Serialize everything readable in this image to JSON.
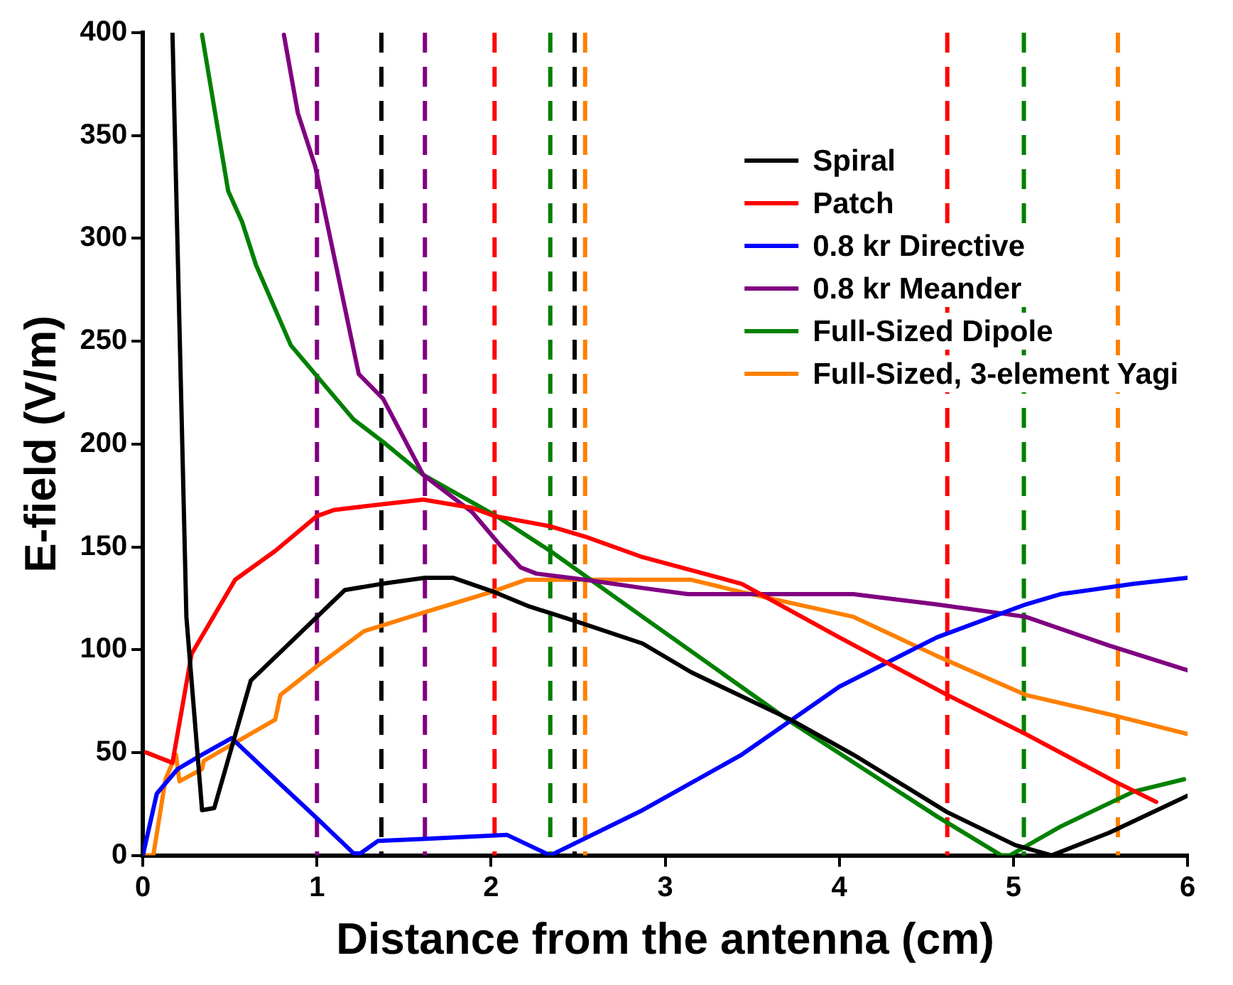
{
  "chart_data": {
    "type": "line",
    "xlabel": "Distance from the antenna (cm)",
    "ylabel": "E-field (V/m)",
    "xlim": [
      0,
      6
    ],
    "xticks": [
      0,
      1,
      2,
      3,
      4,
      5,
      6
    ],
    "ylim": [
      0,
      400
    ],
    "yticks": [
      0,
      50,
      100,
      150,
      200,
      250,
      300,
      350,
      400
    ],
    "grid": false,
    "legend": "top right",
    "marker": "none",
    "line_style": "solid",
    "series": [
      {
        "name": "Spiral",
        "color": "#000000",
        "x": [
          0.17,
          0.25,
          0.34,
          0.41,
          0.62,
          1.16,
          1.37,
          1.62,
          1.78,
          2.02,
          2.22,
          2.48,
          2.87,
          3.15,
          3.72,
          4.08,
          4.62,
          5.01,
          5.22,
          5.55,
          6.0
        ],
        "values": [
          400,
          116,
          22,
          23,
          85,
          129,
          132,
          135,
          135,
          128,
          121,
          114,
          103,
          89,
          66,
          49,
          21,
          5,
          0,
          11,
          29
        ]
      },
      {
        "name": "Patch",
        "color": "#ff0000",
        "x": [
          0.02,
          0.17,
          0.28,
          0.53,
          0.76,
          1.0,
          1.1,
          1.61,
          1.89,
          2.02,
          2.34,
          2.54,
          2.87,
          3.44,
          4.0,
          4.62,
          5.07,
          5.58,
          5.82
        ],
        "values": [
          50,
          45,
          98,
          134,
          148,
          165,
          168,
          173,
          169,
          165,
          160,
          155,
          145,
          132,
          106,
          78,
          59,
          36,
          26
        ]
      },
      {
        "name": "0.8 kr Directive",
        "color": "#0000ff",
        "x": [
          0.0,
          0.08,
          0.2,
          0.34,
          0.51,
          0.76,
          1.0,
          1.21,
          1.25,
          1.35,
          1.61,
          2.09,
          2.34,
          2.87,
          3.44,
          4.0,
          4.56,
          5.07,
          5.27,
          5.69,
          6.0
        ],
        "values": [
          0,
          30,
          42,
          49,
          57,
          37,
          18,
          1,
          1,
          7,
          8,
          10,
          0,
          22,
          49,
          82,
          106,
          122,
          127,
          132,
          135
        ]
      },
      {
        "name": "0.8 kr Meander",
        "color": "#800080",
        "x": [
          0.81,
          0.89,
          0.99,
          1.24,
          1.38,
          1.61,
          1.89,
          2.05,
          2.17,
          2.26,
          2.54,
          2.87,
          3.13,
          4.08,
          4.56,
          5.07,
          5.55,
          6.0
        ],
        "values": [
          399,
          361,
          335,
          234,
          222,
          185,
          167,
          151,
          140,
          137,
          134,
          130,
          127,
          127,
          122,
          116,
          102,
          90
        ]
      },
      {
        "name": "Full-Sized Dipole",
        "color": "#008000",
        "x": [
          0.34,
          0.49,
          0.57,
          0.65,
          0.85,
          0.99,
          1.21,
          1.38,
          1.61,
          2.03,
          2.34,
          2.87,
          3.72,
          4.56,
          4.93,
          4.98,
          5.27,
          5.69,
          5.98
        ],
        "values": [
          399,
          323,
          308,
          287,
          248,
          234,
          212,
          201,
          185,
          165,
          148,
          116,
          65,
          19,
          0,
          0,
          14,
          31,
          37
        ]
      },
      {
        "name": "Full-Sized, 3-element Yagi",
        "color": "#ff8000",
        "x": [
          0.0,
          0.06,
          0.13,
          0.19,
          0.21,
          0.34,
          0.35,
          0.76,
          0.79,
          1.0,
          1.27,
          1.61,
          2.0,
          2.2,
          3.15,
          3.44,
          4.08,
          4.56,
          5.07,
          5.58,
          6.0
        ],
        "values": [
          0,
          0,
          37,
          49,
          36,
          42,
          46,
          66,
          78,
          92,
          109,
          118,
          128,
          134,
          134,
          128,
          116,
          97,
          78,
          68,
          59
        ]
      }
    ],
    "ref_lines": [
      {
        "axis": "x",
        "value": 1.0,
        "color": "#800080",
        "line_style": "dashed"
      },
      {
        "axis": "x",
        "value": 1.62,
        "color": "#800080",
        "line_style": "dashed"
      },
      {
        "axis": "x",
        "value": 1.37,
        "color": "#000000",
        "line_style": "dashed"
      },
      {
        "axis": "x",
        "value": 2.48,
        "color": "#000000",
        "line_style": "dashed"
      },
      {
        "axis": "x",
        "value": 2.02,
        "color": "#ff0000",
        "line_style": "dashed"
      },
      {
        "axis": "x",
        "value": 4.62,
        "color": "#ff0000",
        "line_style": "dashed"
      },
      {
        "axis": "x",
        "value": 2.34,
        "color": "#008000",
        "line_style": "dashed"
      },
      {
        "axis": "x",
        "value": 5.06,
        "color": "#008000",
        "line_style": "dashed"
      },
      {
        "axis": "x",
        "value": 2.54,
        "color": "#ff8000",
        "line_style": "dashed"
      },
      {
        "axis": "x",
        "value": 5.6,
        "color": "#ff8000",
        "line_style": "dashed"
      }
    ]
  }
}
